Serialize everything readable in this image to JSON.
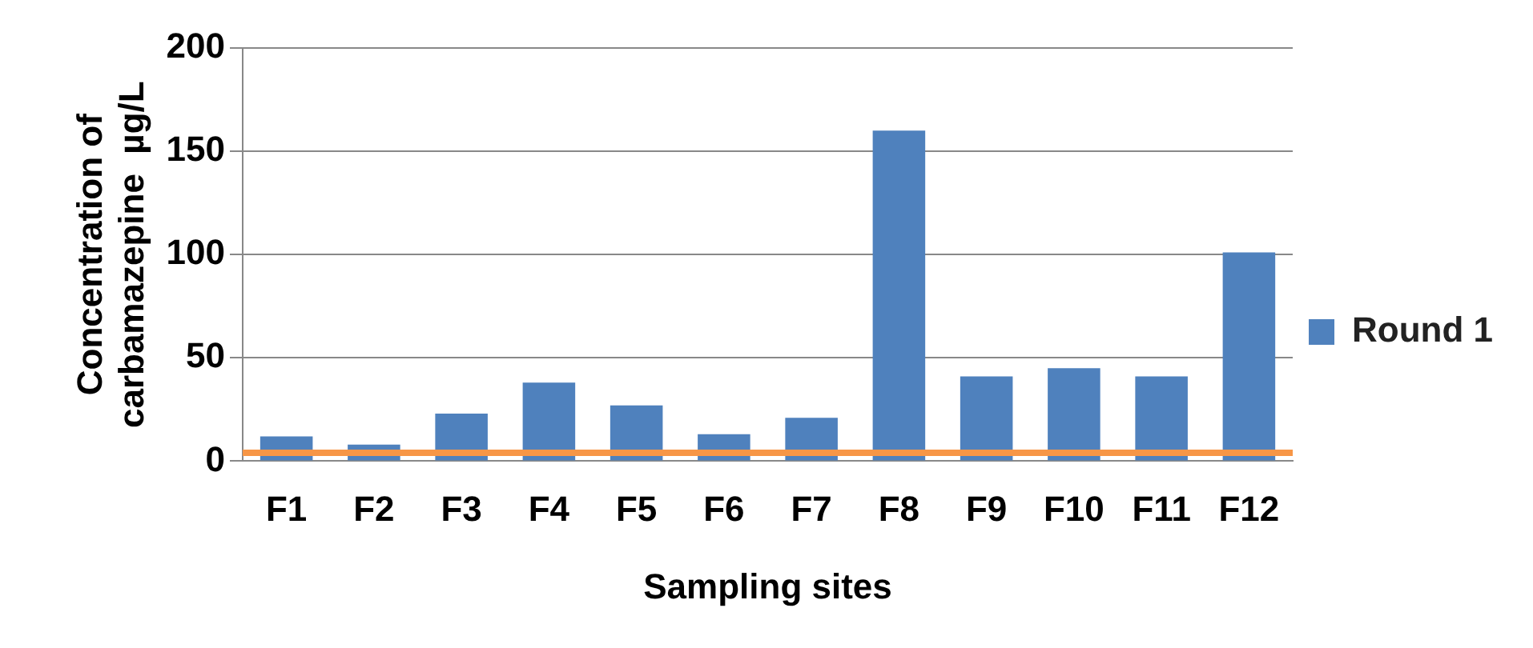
{
  "chart_data": {
    "type": "bar",
    "xlabel": "Sampling sites",
    "ylabel": "Concentration of\ncarbamazepine  µg/L",
    "categories": [
      "F1",
      "F2",
      "F3",
      "F4",
      "F5",
      "F6",
      "F7",
      "F8",
      "F9",
      "F10",
      "F11",
      "F12"
    ],
    "series": [
      {
        "name": "Round 1",
        "color": "#4f81bd",
        "values": [
          12,
          8,
          23,
          38,
          27,
          13,
          21,
          160,
          41,
          45,
          41,
          101
        ]
      }
    ],
    "ylim": [
      0,
      200
    ],
    "yticks": [
      0,
      50,
      100,
      150,
      200
    ],
    "grid": "y",
    "legend": "right",
    "ref_lines": [
      {
        "axis": "y",
        "value": 4,
        "color": "#f79646"
      }
    ]
  }
}
